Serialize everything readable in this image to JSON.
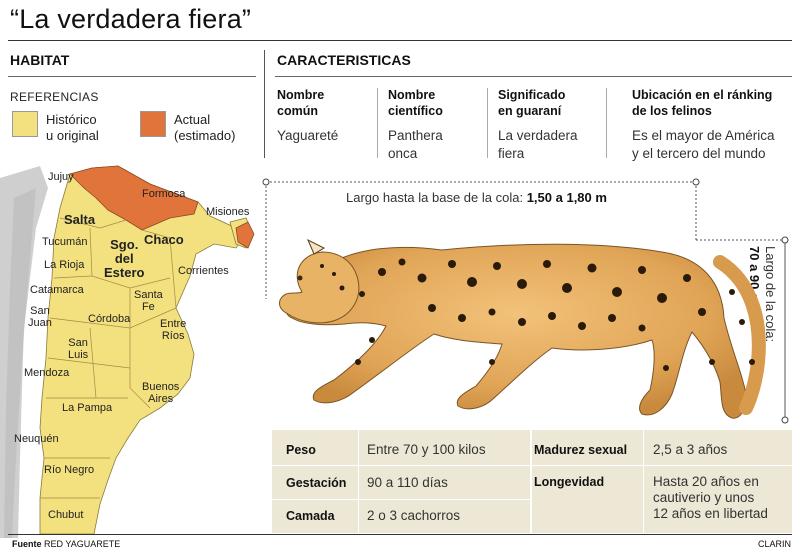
{
  "title": "“La verdadera fiera”",
  "habitat": {
    "heading": "HABITAT",
    "references_label": "REFERENCIAS",
    "legend": [
      {
        "label_line1": "Histórico",
        "label_line2": "u original",
        "color": "#f3e07e"
      },
      {
        "label_line1": "Actual",
        "label_line2": "(estimado)",
        "color": "#e0743a"
      }
    ],
    "map_labels": {
      "jujuy": "Jujuy",
      "salta": "Salta",
      "formosa": "Formosa",
      "misiones": "Misiones",
      "chaco": "Chaco",
      "tucuman": "Tucumán",
      "sgo1": "Sgo.",
      "sgo2": "del",
      "sgo3": "Estero",
      "corrientes": "Corrientes",
      "larioja": "La Rioja",
      "catamarca": "Catamarca",
      "santafe1": "Santa",
      "santafe2": "Fe",
      "sanjuan1": "San",
      "sanjuan2": "Juan",
      "cordoba": "Córdoba",
      "entrerios1": "Entre",
      "entrerios2": "Ríos",
      "sanluis1": "San",
      "sanluis2": "Luis",
      "mendoza": "Mendoza",
      "bsas1": "Buenos",
      "bsas2": "Aires",
      "lapampa": "La Pampa",
      "neuquen": "Neuquén",
      "rionegro": "Río Negro",
      "chubut": "Chubut"
    }
  },
  "characteristics": {
    "heading": "CARACTERISTICAS",
    "columns": [
      {
        "h1": "Nombre",
        "h2": "común",
        "v1": "Yaguareté",
        "v2": ""
      },
      {
        "h1": "Nombre",
        "h2": "científico",
        "v1": "Panthera",
        "v2": "onca"
      },
      {
        "h1": "Significado",
        "h2": "en guaraní",
        "v1": "La verdadera",
        "v2": "fiera"
      },
      {
        "h1": "Ubicación en el ránking",
        "h2": "de los felinos",
        "v1": "Es el mayor de América",
        "v2": "y el tercero del mundo"
      }
    ]
  },
  "dimensions": {
    "length_label": "Largo hasta la base de la cola:",
    "length_value": "1,50 a 1,80 m",
    "tail_label": "Largo de la cola:",
    "tail_value": "70 a 90 cm"
  },
  "stats": {
    "left": [
      {
        "label": "Peso",
        "value": "Entre 70 y 100 kilos"
      },
      {
        "label": "Gestación",
        "value": "90 a 110 días"
      },
      {
        "label": "Camada",
        "value": "2 o 3 cachorros"
      }
    ],
    "right": [
      {
        "label": "Madurez sexual",
        "value_lines": [
          "2,5 a 3 años"
        ]
      },
      {
        "label": "Longevidad",
        "value_lines": [
          "Hasta 20 años en",
          "cautiverio y unos",
          "12 años en libertad"
        ]
      }
    ]
  },
  "footer": {
    "source_label": "Fuente",
    "source_value": "RED YAGUARETE",
    "credit": "CLARIN"
  }
}
